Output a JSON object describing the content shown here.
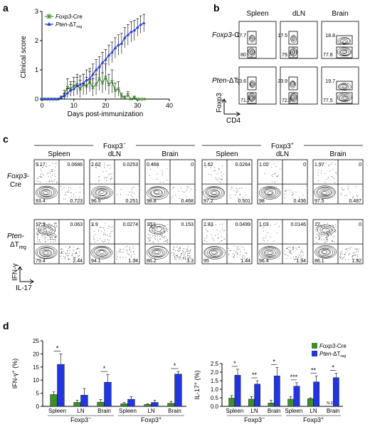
{
  "panel_letters": [
    "a",
    "b",
    "c",
    "d"
  ],
  "colors": {
    "cre": "#3e8e2c",
    "pten": "#2236e0",
    "contour": "#000000"
  },
  "legend_html_note": "",
  "chart_data": [
    {
      "id": "a",
      "type": "line",
      "xlabel": "Days post-immunization",
      "ylabel": "Clinical score",
      "xlim": [
        0,
        40
      ],
      "ylim": [
        0,
        3
      ],
      "xticks": [
        "0",
        "10",
        "20",
        "30",
        "40"
      ],
      "yticks": [
        "0",
        "1",
        "2",
        "3"
      ],
      "legend": [
        {
          "pre": "",
          "it": "Foxp3",
          "post": "-Cre",
          "sub": ""
        },
        {
          "pre": "",
          "it": "Pten",
          "post": "-ΔT",
          "sub": "reg"
        }
      ],
      "x": [
        0,
        1,
        2,
        3,
        4,
        5,
        6,
        7,
        8,
        9,
        10,
        11,
        12,
        13,
        14,
        15,
        16,
        17,
        18,
        19,
        20,
        21,
        22,
        23,
        24,
        25,
        26,
        27,
        28,
        29,
        30,
        31,
        32
      ],
      "series": [
        {
          "name": "Foxp3-Cre",
          "values": [
            0,
            0,
            0,
            0,
            0,
            0,
            0.05,
            0.15,
            0.4,
            0.35,
            0.45,
            0.5,
            0.35,
            0.5,
            0.45,
            0.6,
            0.4,
            0.5,
            0.7,
            0.55,
            0.75,
            0.5,
            0.6,
            0.3,
            0.35,
            0.1,
            0.05,
            0.15,
            0,
            0.05,
            0,
            0,
            0
          ],
          "err": [
            0,
            0,
            0,
            0,
            0,
            0,
            0.05,
            0.15,
            0.3,
            0.25,
            0.3,
            0.35,
            0.3,
            0.35,
            0.3,
            0.35,
            0.3,
            0.35,
            0.4,
            0.35,
            0.45,
            0.35,
            0.4,
            0.25,
            0.25,
            0.1,
            0.05,
            0.1,
            0,
            0.05,
            0,
            0,
            0
          ]
        },
        {
          "name": "Pten-ΔTreg",
          "values": [
            0,
            0,
            0,
            0,
            0,
            0,
            0.05,
            0.1,
            0.2,
            0.3,
            0.35,
            0.45,
            0.5,
            0.55,
            0.65,
            0.7,
            0.85,
            1.0,
            1.1,
            1.25,
            1.35,
            1.5,
            1.6,
            1.75,
            1.85,
            1.9,
            2.1,
            2.2,
            2.3,
            2.35,
            2.45,
            2.55,
            2.6
          ],
          "err": [
            0,
            0,
            0,
            0,
            0,
            0,
            0.05,
            0.1,
            0.15,
            0.2,
            0.25,
            0.3,
            0.3,
            0.3,
            0.35,
            0.35,
            0.35,
            0.35,
            0.35,
            0.35,
            0.35,
            0.35,
            0.35,
            0.35,
            0.35,
            0.35,
            0.35,
            0.35,
            0.35,
            0.35,
            0.3,
            0.3,
            0.3
          ]
        }
      ]
    },
    {
      "id": "d-left",
      "type": "bar",
      "ylabel_pre": "IFN-γ",
      "ylabel_sup": "+",
      "ylabel_post": " (%)",
      "ylim": [
        0,
        25
      ],
      "yticks": [
        "0",
        "5",
        "10",
        "15",
        "20",
        "25"
      ],
      "categories": [
        "Spleen",
        "LN",
        "Brain",
        "Spleen",
        "LN",
        "Brain"
      ],
      "groups": [
        {
          "label": "Foxp3",
          "sup": "−"
        },
        {
          "label": "Foxp3",
          "sup": "+"
        }
      ],
      "series": [
        {
          "name": "Foxp3-Cre",
          "values": [
            4.5,
            1.5,
            1.6,
            1.0,
            0.7,
            1.2
          ],
          "err": [
            1.0,
            0.8,
            1.0,
            0.5,
            0.3,
            0.7
          ]
        },
        {
          "name": "Pten-ΔTreg",
          "values": [
            16.0,
            4.3,
            9.2,
            2.7,
            1.5,
            12.3
          ],
          "err": [
            4.0,
            2.5,
            3.0,
            1.0,
            0.8,
            1.0
          ]
        }
      ],
      "significance": [
        {
          "cat": 0,
          "label": "*"
        },
        {
          "cat": 2,
          "label": "*"
        },
        {
          "cat": 5,
          "label": "*"
        }
      ]
    },
    {
      "id": "d-right",
      "type": "bar",
      "ylabel_pre": "IL-17",
      "ylabel_sup": "+",
      "ylabel_post": " (%)",
      "ylim": [
        0,
        2.5
      ],
      "yticks": [
        "0.0",
        "0.5",
        "1.0",
        "1.5",
        "2.0",
        "2.5"
      ],
      "categories": [
        "Spleen",
        "LN",
        "Brain",
        "Spleen",
        "LN",
        "Brain"
      ],
      "groups": [
        {
          "label": "Foxp3",
          "sup": "−"
        },
        {
          "label": "Foxp3",
          "sup": "+"
        }
      ],
      "legend": [
        {
          "it": "Foxp3",
          "post": "-Cre",
          "sub": ""
        },
        {
          "it": "Pten",
          "post": "-ΔT",
          "sub": "reg"
        }
      ],
      "na_label": "N.D",
      "series": [
        {
          "name": "Foxp3-Cre",
          "values": [
            0.48,
            0.42,
            0.2,
            0.42,
            0.45,
            null
          ],
          "err": [
            0.15,
            0.15,
            0.15,
            0.15,
            0.05,
            0
          ]
        },
        {
          "name": "Pten-ΔTreg",
          "values": [
            1.82,
            1.3,
            1.78,
            1.18,
            1.43,
            1.68
          ],
          "err": [
            0.35,
            0.2,
            0.5,
            0.2,
            0.35,
            0.25
          ]
        }
      ],
      "significance": [
        {
          "cat": 0,
          "label": "*"
        },
        {
          "cat": 1,
          "label": "**"
        },
        {
          "cat": 2,
          "label": "*"
        },
        {
          "cat": 3,
          "label": "***"
        },
        {
          "cat": 4,
          "label": "**"
        },
        {
          "cat": 5,
          "label": "*"
        }
      ]
    }
  ],
  "panel_b": {
    "columns": [
      "Spleen",
      "dLN",
      "Brain"
    ],
    "rows": [
      {
        "it": "Foxp3",
        "post": "-Cre",
        "sub": "",
        "gates": [
          [
            "17.7",
            "80"
          ],
          [
            "17.5",
            "79.7"
          ],
          [
            "18.8",
            "77.8"
          ]
        ]
      },
      {
        "it": "Pten",
        "post": "-ΔT",
        "sub": "reg",
        "gates": [
          [
            "23.6",
            "71.7"
          ],
          [
            "23.9",
            "72.9"
          ],
          [
            "19.7",
            "77.5"
          ]
        ]
      }
    ],
    "yaxis": "Foxp3",
    "xaxis": "CD4"
  },
  "panel_c": {
    "groups": [
      {
        "label": "Foxp3",
        "sup": "−"
      },
      {
        "label": "Foxp3",
        "sup": "+"
      }
    ],
    "columns": [
      "Spleen",
      "dLN",
      "Brain",
      "Spleen",
      "dLN",
      "Brain"
    ],
    "rows": [
      {
        "it": "Foxp3",
        "post": "-",
        "line2": "Cre",
        "sub": "",
        "quads": [
          [
            "5.17",
            "0.0686",
            "93.4",
            "0.723"
          ],
          [
            "2.62",
            "0.0253",
            "96.5",
            "0.251"
          ],
          [
            "0.468",
            "0",
            "98.8",
            "0.468"
          ],
          [
            "1.62",
            "0.0264",
            "97.2",
            "0.501"
          ],
          [
            "1.02",
            "0",
            "98",
            "0.436"
          ],
          [
            "1.97",
            "0",
            "97.5",
            "0.487"
          ]
        ]
      },
      {
        "it": "Pten",
        "post": "-",
        "line2": "ΔT",
        "sub": "reg",
        "quads": [
          [
            "17.5",
            "0.063",
            "79.4",
            "2.44"
          ],
          [
            "3.9",
            "0.0274",
            "94.1",
            "1.34"
          ],
          [
            "10.1",
            "0.153",
            "86.2",
            "3.3"
          ],
          [
            "2.83",
            "0.0499",
            "95",
            "1.44"
          ],
          [
            "1.03",
            "0.0146",
            "96.4",
            "1.94"
          ],
          [
            "12",
            "0",
            "86.1",
            "1.92"
          ]
        ]
      }
    ],
    "yaxis": "IFN-γ",
    "xaxis": "IL-17"
  }
}
